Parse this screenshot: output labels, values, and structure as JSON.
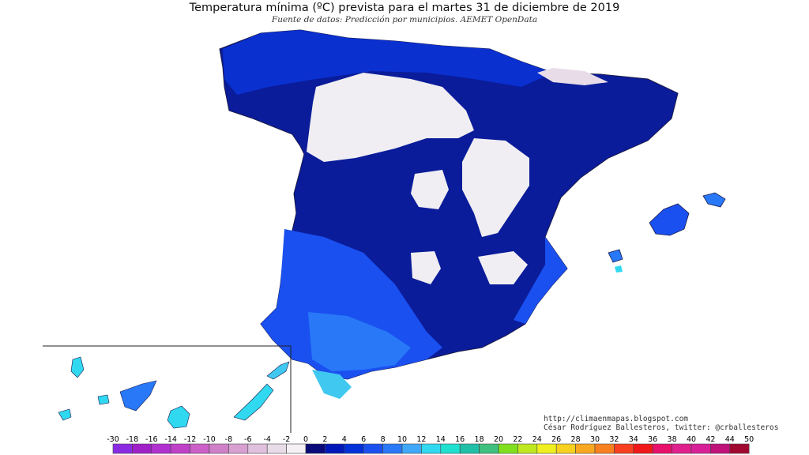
{
  "header": {
    "title": "Temperatura mínima (ºC) prevista para el martes 31 de diciembre de 2019",
    "subtitle": "Fuente de datos: Predicción por municipios. AEMET OpenData"
  },
  "credits": {
    "blog": "http://climaenmapas.blogspot.com",
    "author": "César Rodríguez Ballesteros, twitter: @crballesteros"
  },
  "map": {
    "regions_shown": [
      "Península Ibérica (España)",
      "Islas Baleares",
      "Islas Canarias (inset)"
    ],
    "dominant_range_north_plateau": "-2 to 0",
    "dominant_range_interior": "0 to 2",
    "dominant_range_coast": "4 to 8",
    "warmest_area": "Cádiz coast / Canarias"
  },
  "legend": {
    "labels": [
      "-30",
      "-18",
      "-16",
      "-14",
      "-12",
      "-10",
      "-8",
      "-6",
      "-4",
      "-2",
      "0",
      "2",
      "4",
      "6",
      "8",
      "10",
      "12",
      "14",
      "16",
      "18",
      "20",
      "22",
      "24",
      "26",
      "28",
      "30",
      "32",
      "34",
      "36",
      "38",
      "40",
      "42",
      "44",
      "50"
    ],
    "colors": [
      "#8a2be2",
      "#a020c8",
      "#b030d0",
      "#c040c8",
      "#cc60c8",
      "#d080c8",
      "#d8a0d0",
      "#e0c0dc",
      "#e8dce8",
      "#f4f0f4",
      "#0a0a78",
      "#0018b8",
      "#0030d8",
      "#1a50f0",
      "#2878f8",
      "#40a8f8",
      "#30d8f0",
      "#20e0d0",
      "#20c0a8",
      "#40c080",
      "#80e020",
      "#c0e820",
      "#f0f020",
      "#f8d020",
      "#f8a820",
      "#f88020",
      "#f84020",
      "#f01818",
      "#e8106a",
      "#e0208c",
      "#d82098",
      "#c0107a",
      "#a00830"
    ]
  }
}
